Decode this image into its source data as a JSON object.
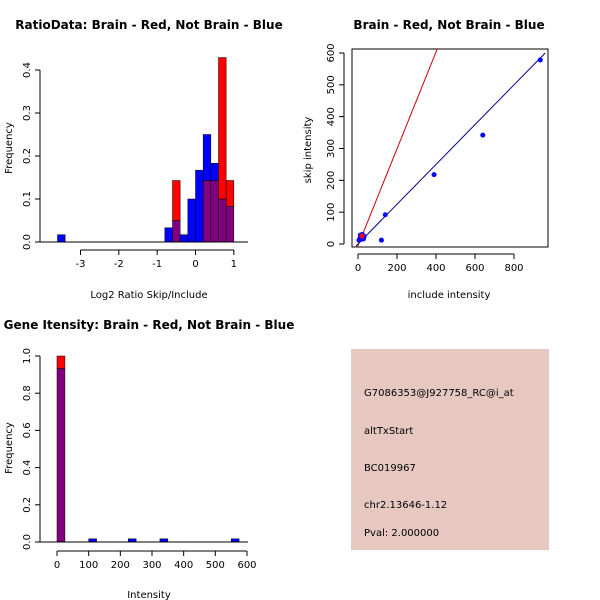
{
  "colors": {
    "red": "#ff0000",
    "blue": "#0000ff",
    "purple": "#800080",
    "darkred": "#cc0000",
    "darkblue": "#00008b",
    "panel_bg": "#e6c8c0",
    "pval": "#cc0000"
  },
  "chart_data": [
    {
      "type": "bar",
      "subtype": "overlaid-histogram",
      "title": "RatioData: Brain - Red, Not Brain - Blue",
      "xlabel": "Log2 Ratio Skip/Include",
      "ylabel": "Frequency",
      "xlim": [
        -3.6,
        1.2
      ],
      "ylim": [
        0,
        0.45
      ],
      "xticks": [
        -3,
        -2,
        -1,
        0,
        1
      ],
      "xtick_labels": [
        "-3",
        "-2",
        "-1",
        "0",
        "1"
      ],
      "yticks": [
        0.0,
        0.1,
        0.2,
        0.3,
        0.4
      ],
      "ytick_labels": [
        "0.0",
        "0.1",
        "0.2",
        "0.3",
        "0.4"
      ],
      "bin_width": 0.2,
      "series": [
        {
          "name": "Brain",
          "color": "red",
          "bins": [
            {
              "x0": -0.6,
              "value": 0.143
            },
            {
              "x0": 0.2,
              "value": 0.143
            },
            {
              "x0": 0.4,
              "value": 0.143
            },
            {
              "x0": 0.6,
              "value": 0.429
            },
            {
              "x0": 0.8,
              "value": 0.143
            }
          ]
        },
        {
          "name": "Not Brain",
          "color": "blue",
          "bins": [
            {
              "x0": -3.6,
              "value": 0.017
            },
            {
              "x0": -0.8,
              "value": 0.033
            },
            {
              "x0": -0.6,
              "value": 0.05
            },
            {
              "x0": -0.4,
              "value": 0.017
            },
            {
              "x0": -0.2,
              "value": 0.1
            },
            {
              "x0": 0.0,
              "value": 0.167
            },
            {
              "x0": 0.2,
              "value": 0.25
            },
            {
              "x0": 0.4,
              "value": 0.183
            },
            {
              "x0": 0.6,
              "value": 0.1
            },
            {
              "x0": 0.8,
              "value": 0.083
            }
          ]
        }
      ]
    },
    {
      "type": "scatter",
      "title": "Brain - Red, Not Brain - Blue",
      "xlabel": "include intensity",
      "ylabel": "skip intensity",
      "xlim": [
        -10,
        960
      ],
      "ylim": [
        -10,
        610
      ],
      "xticks": [
        0,
        200,
        400,
        600,
        800
      ],
      "xtick_labels": [
        "0",
        "200",
        "400",
        "600",
        "800"
      ],
      "yticks": [
        0,
        100,
        200,
        300,
        400,
        500,
        600
      ],
      "ytick_labels": [
        "0",
        "100",
        "200",
        "300",
        "400",
        "500",
        "600"
      ],
      "series": [
        {
          "name": "Brain",
          "color": "darkred",
          "points": [
            [
              20,
              25
            ]
          ],
          "fit_line": {
            "slope": 1.52,
            "intercept": -5
          }
        },
        {
          "name": "Not Brain",
          "color": "blue",
          "points": [
            [
              5,
              12
            ],
            [
              10,
              18
            ],
            [
              12,
              28
            ],
            [
              15,
              22
            ],
            [
              18,
              15
            ],
            [
              22,
              30
            ],
            [
              25,
              20
            ],
            [
              28,
              16
            ],
            [
              32,
              24
            ],
            [
              120,
              12
            ],
            [
              140,
              92
            ],
            [
              390,
              218
            ],
            [
              640,
              342
            ],
            [
              935,
              578
            ]
          ],
          "fit_line": {
            "slope": 0.625,
            "intercept": 0
          }
        }
      ]
    },
    {
      "type": "bar",
      "subtype": "overlaid-histogram",
      "title": "Gene Itensity: Brain - Red, Not Brain - Blue",
      "xlabel": "Intensity",
      "ylabel": "Frequency",
      "xlim": [
        0,
        600
      ],
      "ylim": [
        0,
        1.0
      ],
      "xticks": [
        0,
        100,
        200,
        300,
        400,
        500,
        600
      ],
      "xtick_labels": [
        "0",
        "100",
        "200",
        "300",
        "400",
        "500",
        "600"
      ],
      "yticks": [
        0.0,
        0.2,
        0.4,
        0.6,
        0.8,
        1.0
      ],
      "ytick_labels": [
        "0.0",
        "0.2",
        "0.4",
        "0.6",
        "0.8",
        "1.0"
      ],
      "bin_width": 25,
      "series": [
        {
          "name": "Brain",
          "color": "red",
          "bins": [
            {
              "x0": 0,
              "value": 1.0
            }
          ]
        },
        {
          "name": "Not Brain",
          "color": "blue",
          "bins": [
            {
              "x0": 0,
              "value": 0.933
            },
            {
              "x0": 100,
              "value": 0.017
            },
            {
              "x0": 225,
              "value": 0.017
            },
            {
              "x0": 325,
              "value": 0.017
            },
            {
              "x0": 550,
              "value": 0.017
            }
          ]
        }
      ]
    }
  ],
  "info": {
    "probe_id": "G7086353@J927758_RC@i_at",
    "event_type": "altTxStart",
    "accession": "BC019967",
    "location": "chr2.13646-1.12",
    "pval": "Pval: 2.000000"
  }
}
